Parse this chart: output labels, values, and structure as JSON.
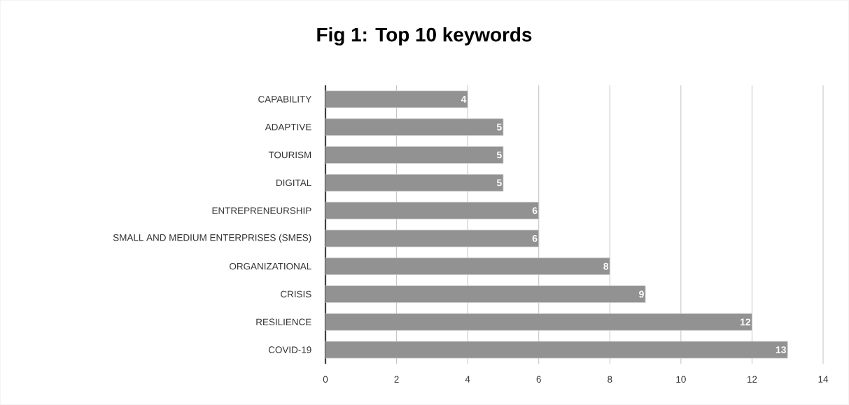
{
  "chart_data": {
    "type": "bar",
    "orientation": "horizontal",
    "title": "Fig 1: Top 10 keywords",
    "categories": [
      "CAPABILITY",
      "ADAPTIVE",
      "TOURISM",
      "DIGITAL",
      "ENTREPRENEURSHIP",
      "SMALL AND MEDIUM ENTERPRISES (SMES)",
      "ORGANIZATIONAL",
      "CRISIS",
      "RESILIENCE",
      "COVID-19"
    ],
    "values": [
      4,
      5,
      5,
      5,
      6,
      6,
      8,
      9,
      12,
      13
    ],
    "color": "#929292",
    "xlim": [
      0,
      14
    ],
    "xticks": [
      0,
      2,
      4,
      6,
      8,
      10,
      12,
      14
    ],
    "grid": "x",
    "data_labels": true
  }
}
